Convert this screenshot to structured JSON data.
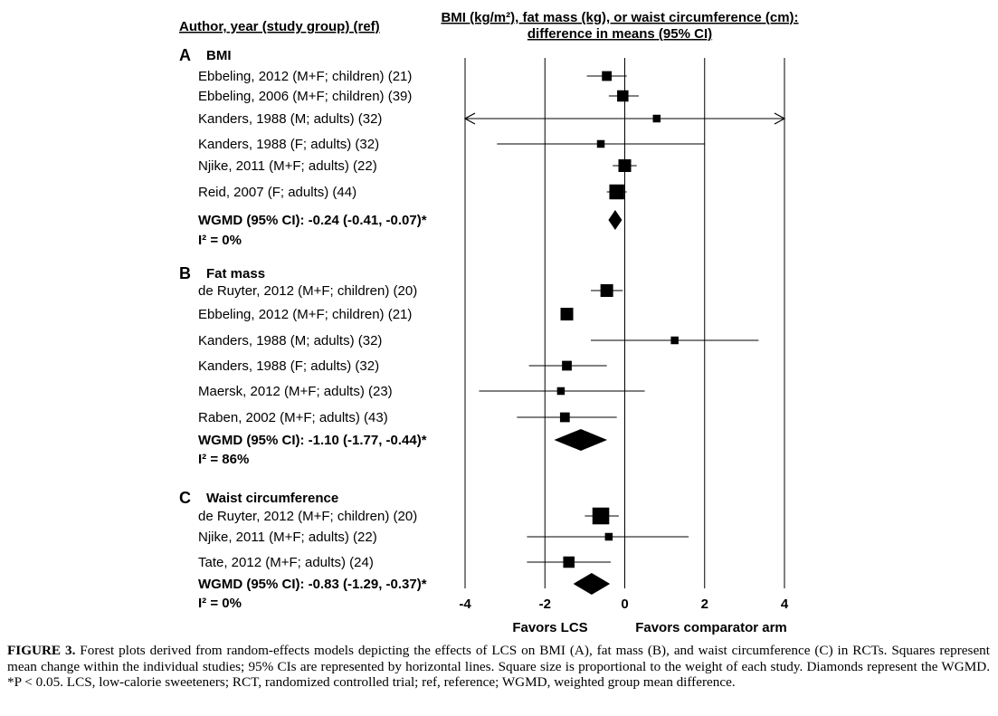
{
  "header": {
    "left": "Author, year (study group) (ref)",
    "right_line1": "BMI (kg/m²), fat mass (kg), or waist circumference (cm):",
    "right_line2": "difference in means (95% CI)"
  },
  "x_axis": {
    "ticks": [
      -4,
      -2,
      0,
      2,
      4
    ],
    "tick_labels": [
      "-4",
      "-2",
      "0",
      "2",
      "4"
    ],
    "favors_left": "Favors LCS",
    "favors_right": "Favors comparator arm"
  },
  "chart_data": {
    "type": "forest",
    "xlim": [
      -4,
      4
    ],
    "reference_line": 0,
    "gridlines": [
      -4,
      -2,
      2,
      4
    ],
    "panels": [
      {
        "letter": "A",
        "title": "BMI",
        "studies": [
          {
            "label": "Ebbeling, 2012 (M+F; children) (21)",
            "estimate": -0.45,
            "lower": -0.95,
            "upper": 0.05,
            "weight": 2
          },
          {
            "label": "Ebbeling, 2006 (M+F; children) (39)",
            "estimate": -0.05,
            "lower": -0.4,
            "upper": 0.35,
            "weight": 3
          },
          {
            "label": "Kanders, 1988 (M; adults) (32)",
            "estimate": 0.8,
            "lower": -4,
            "upper": 4,
            "weight": 1,
            "arrow_left": true,
            "arrow_right": true
          },
          {
            "label": "Kanders, 1988 (F; adults) (32)",
            "estimate": -0.6,
            "lower": -3.2,
            "upper": 2,
            "weight": 1
          },
          {
            "label": "Njike, 2011 (M+F; adults) (22)",
            "estimate": 0,
            "lower": -0.3,
            "upper": 0.3,
            "weight": 4
          },
          {
            "label": "Reid, 2007 (F; adults) (44)",
            "estimate": -0.2,
            "lower": -0.45,
            "upper": 0.05,
            "weight": 6
          }
        ],
        "pooled": {
          "label": "WGMD (95% CI): -0.24 (-0.41, -0.07)*",
          "estimate": -0.24,
          "lower": -0.41,
          "upper": -0.07
        },
        "heterogeneity": "I² = 0%"
      },
      {
        "letter": "B",
        "title": "Fat mass",
        "studies": [
          {
            "label": "de Ruyter, 2012 (M+F; children) (20)",
            "estimate": -0.45,
            "lower": -0.85,
            "upper": -0.05,
            "weight": 4
          },
          {
            "label": "Ebbeling, 2012 (M+F; children) (21)",
            "estimate": -1.45,
            "lower": -1.45,
            "upper": -1.45,
            "weight": 4
          },
          {
            "label": "Kanders, 1988 (M; adults) (32)",
            "estimate": 1.25,
            "lower": -0.85,
            "upper": 3.35,
            "weight": 1
          },
          {
            "label": "Kanders, 1988 (F; adults) (32)",
            "estimate": -1.45,
            "lower": -2.4,
            "upper": -0.45,
            "weight": 2
          },
          {
            "label": "Maersk, 2012 (M+F; adults) (23)",
            "estimate": -1.6,
            "lower": -3.65,
            "upper": 0.5,
            "weight": 1
          },
          {
            "label": "Raben, 2002 (M+F; adults) (43)",
            "estimate": -1.5,
            "lower": -2.7,
            "upper": -0.2,
            "weight": 2
          }
        ],
        "pooled": {
          "label": "WGMD (95% CI): -1.10 (-1.77, -0.44)*",
          "estimate": -1.1,
          "lower": -1.77,
          "upper": -0.44
        },
        "heterogeneity": "I² = 86%"
      },
      {
        "letter": "C",
        "title": "Waist circumference",
        "studies": [
          {
            "label": "de Ruyter, 2012 (M+F; children) (20)",
            "estimate": -0.6,
            "lower": -1.0,
            "upper": -0.15,
            "weight": 8
          },
          {
            "label": "Njike, 2011 (M+F; adults) (22)",
            "estimate": -0.4,
            "lower": -2.45,
            "upper": 1.6,
            "weight": 1
          },
          {
            "label": "Tate, 2012 (M+F; adults) (24)",
            "estimate": -1.4,
            "lower": -2.45,
            "upper": -0.35,
            "weight": 3
          }
        ],
        "pooled": {
          "label": "WGMD (95% CI): -0.83 (-1.29, -0.37)*",
          "estimate": -0.83,
          "lower": -1.29,
          "upper": -0.37
        },
        "heterogeneity": "I² = 0%"
      }
    ]
  },
  "caption": {
    "label": "FIGURE 3.",
    "text": "Forest plots derived from random-effects models depicting the effects of LCS on BMI (A), fat mass (B), and waist circumference (C) in RCTs. Squares represent mean change within the individual studies; 95% CIs are represented by horizontal lines. Square size is proportional to the weight of each study. Diamonds represent the WGMD. *P < 0.05. LCS, low-calorie sweeteners; RCT, randomized controlled trial; ref, reference; WGMD, weighted group mean difference."
  }
}
